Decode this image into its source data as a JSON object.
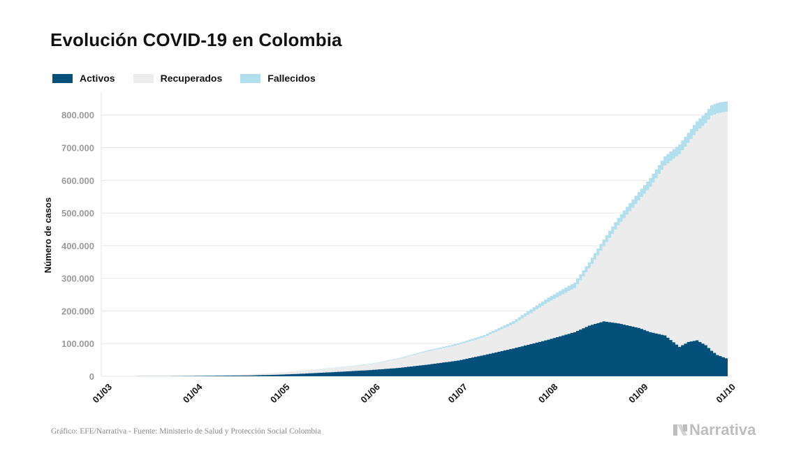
{
  "title": "Evolución COVID-19 en Colombia",
  "source": "Gráfico: EFE/Narrativa - Fuente: Ministerio de Salud y Protección Social Colombia",
  "brand": {
    "name": "Narrativa",
    "icon": "narrativa-n-logo-icon"
  },
  "colors": {
    "activos": "#03507a",
    "recuperados": "#ececec",
    "fallecidos": "#b2dfee",
    "grid": "#e6e6e6",
    "tick": "#9a9a9a"
  },
  "chart_data": {
    "type": "area",
    "stacked": true,
    "ylabel": "Número de casos",
    "xlabel": "",
    "ylim": [
      0,
      870000
    ],
    "xlim": [
      "2020-03-01",
      "2020-10-02"
    ],
    "grid": true,
    "legend_position": "top-left",
    "x_ticks": [
      "01/03",
      "01/04",
      "01/05",
      "01/06",
      "01/07",
      "01/08",
      "01/09",
      "01/10"
    ],
    "x_tick_dates": [
      "2020-03-01",
      "2020-04-01",
      "2020-05-01",
      "2020-06-01",
      "2020-07-01",
      "2020-08-01",
      "2020-09-01",
      "2020-10-01"
    ],
    "y_ticks": [
      0,
      100000,
      200000,
      300000,
      400000,
      500000,
      600000,
      700000,
      800000
    ],
    "y_tick_labels": [
      "0",
      "100.000",
      "200.000",
      "300.000",
      "400.000",
      "500.000",
      "600.000",
      "700.000",
      "800.000"
    ],
    "x": [
      "2020-03-06",
      "2020-03-15",
      "2020-03-25",
      "2020-04-01",
      "2020-04-10",
      "2020-04-20",
      "2020-05-01",
      "2020-05-10",
      "2020-05-20",
      "2020-06-01",
      "2020-06-10",
      "2020-06-20",
      "2020-07-01",
      "2020-07-10",
      "2020-07-20",
      "2020-08-01",
      "2020-08-10",
      "2020-08-15",
      "2020-08-20",
      "2020-08-25",
      "2020-09-01",
      "2020-09-05",
      "2020-09-10",
      "2020-09-15",
      "2020-09-18",
      "2020-09-21",
      "2020-09-24",
      "2020-09-26",
      "2020-09-28",
      "2020-10-01"
    ],
    "series": [
      {
        "name": "Activos",
        "color": "#03507a",
        "values": [
          0,
          200,
          400,
          900,
          1600,
          2500,
          5000,
          8500,
          13000,
          19000,
          25000,
          35000,
          48000,
          65000,
          85000,
          112000,
          135000,
          155000,
          168000,
          162000,
          148000,
          135000,
          125000,
          90000,
          105000,
          110000,
          95000,
          78000,
          65000,
          55000
        ]
      },
      {
        "name": "Recuperados",
        "color": "#ececec",
        "values": [
          0,
          100,
          500,
          1000,
          2000,
          3500,
          6000,
          9000,
          13000,
          18000,
          27000,
          40000,
          48000,
          55000,
          75000,
          115000,
          135000,
          175000,
          230000,
          300000,
          390000,
          445000,
          520000,
          590000,
          610000,
          640000,
          680000,
          720000,
          740000,
          755000
        ]
      },
      {
        "name": "Fallecidos",
        "color": "#b2dfee",
        "values": [
          0,
          0,
          30,
          40,
          100,
          200,
          400,
          600,
          900,
          1300,
          2000,
          3000,
          4500,
          6000,
          9000,
          14000,
          17000,
          19000,
          21000,
          23000,
          26000,
          27000,
          28500,
          30000,
          30500,
          31000,
          31500,
          32000,
          32000,
          31500
        ]
      }
    ]
  }
}
